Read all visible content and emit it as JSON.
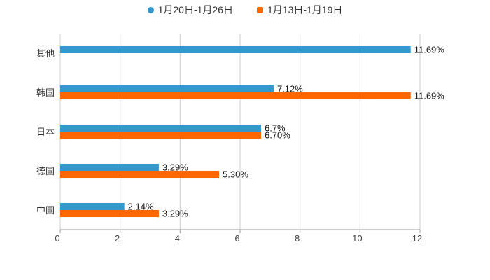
{
  "chart_data": {
    "type": "bar",
    "orientation": "horizontal",
    "categories": [
      "其他",
      "韩国",
      "日本",
      "德国",
      "中国"
    ],
    "series": [
      {
        "name": "1月20日-1月26日",
        "color": "#3399cc",
        "marker": "circle",
        "values": [
          11.69,
          7.12,
          6.7,
          3.29,
          2.14
        ],
        "labels": [
          "11.69%",
          "7.12%",
          "6.7%",
          "3.29%",
          "2.14%"
        ]
      },
      {
        "name": "1月13日-1月19日",
        "color": "#ff6600",
        "marker": "square",
        "values": [
          null,
          11.69,
          6.7,
          5.3,
          3.29
        ],
        "labels": [
          null,
          "11.69%",
          "6.70%",
          "5.30%",
          "3.29%"
        ]
      }
    ],
    "x_ticks": [
      "0",
      "2",
      "4",
      "6",
      "8",
      "10",
      "12"
    ],
    "xlim": [
      0,
      12
    ],
    "grid": true,
    "legend_position": "top-center"
  }
}
